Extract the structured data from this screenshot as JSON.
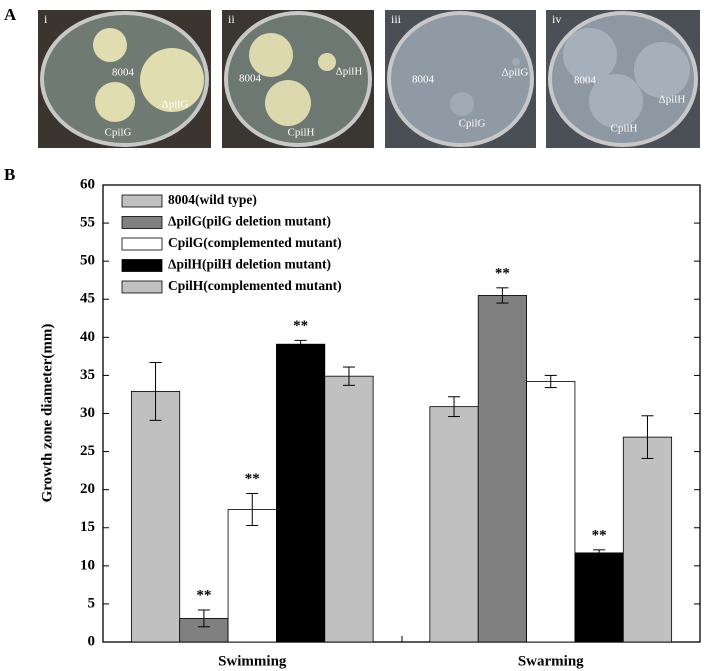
{
  "figure": {
    "panel_labels": [
      "A",
      "B"
    ]
  },
  "photos": [
    {
      "label": "i",
      "colony_labels": [
        "8004",
        "ΔpilG",
        "CpilG"
      ]
    },
    {
      "label": "ii",
      "colony_labels": [
        "8004",
        "ΔpilH",
        "CpilH"
      ]
    },
    {
      "label": "iii",
      "colony_labels": [
        "8004",
        "ΔpilG",
        "CpilG"
      ]
    },
    {
      "label": "iv",
      "colony_labels": [
        "8004",
        "ΔpilH",
        "CpilH"
      ]
    }
  ],
  "chart_data": {
    "type": "bar",
    "y_label": "Growth zone diameter(mm)",
    "categories": [
      "Swimming",
      "Swarming"
    ],
    "series": [
      {
        "name": "8004(wild type)",
        "color": "#c0c0c0",
        "values": [
          32.9,
          30.9
        ],
        "errors": [
          3.8,
          1.3
        ],
        "annotations": [
          null,
          null
        ]
      },
      {
        "name": "ΔpilG(pilG deletion mutant)",
        "color": "#808080",
        "values": [
          3.1,
          45.5
        ],
        "errors": [
          1.1,
          1.0
        ],
        "annotations": [
          "**",
          "**"
        ]
      },
      {
        "name": "CpilG(complemented mutant)",
        "color": "#ffffff",
        "values": [
          17.4,
          34.2
        ],
        "errors": [
          2.1,
          0.8
        ],
        "annotations": [
          "**",
          null
        ]
      },
      {
        "name": "ΔpilH(pilH deletion mutant)",
        "color": "#000000",
        "values": [
          39.1,
          11.7
        ],
        "errors": [
          0.5,
          0.4
        ],
        "annotations": [
          "**",
          "**"
        ]
      },
      {
        "name": "CpilH(complemented mutant)",
        "color": "#c0c0c0",
        "values": [
          34.9,
          26.9
        ],
        "errors": [
          1.2,
          2.8
        ],
        "annotations": [
          null,
          null
        ]
      }
    ],
    "ylim": [
      0,
      60
    ],
    "yticks": [
      0,
      5,
      10,
      15,
      20,
      25,
      30,
      35,
      40,
      45,
      50,
      55,
      60
    ]
  }
}
